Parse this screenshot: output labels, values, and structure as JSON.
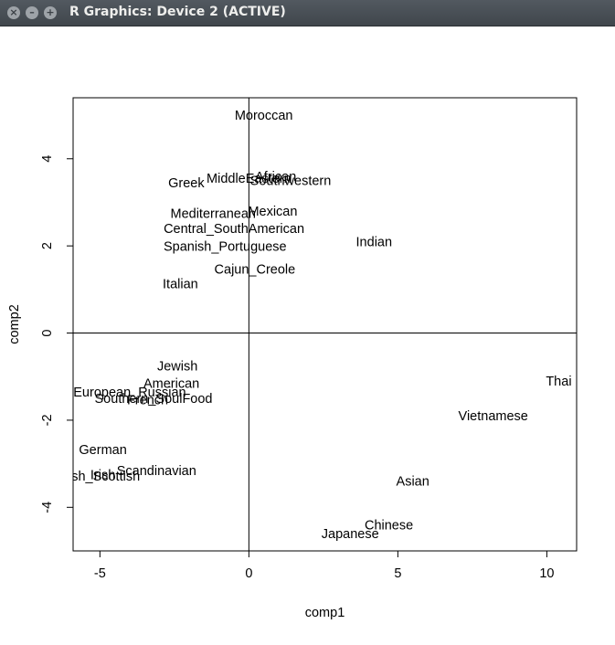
{
  "window": {
    "title": "R Graphics: Device 2 (ACTIVE)",
    "close_glyph": "×",
    "minimize_glyph": "–",
    "maximize_glyph": "+"
  },
  "chart_data": {
    "type": "scatter",
    "title": "",
    "xlabel": "comp1",
    "ylabel": "comp2",
    "xlim": [
      -5.9,
      11.0
    ],
    "ylim": [
      -5.0,
      5.4
    ],
    "xticks": [
      -5,
      0,
      5,
      10
    ],
    "yticks": [
      -4,
      -2,
      0,
      2,
      4
    ],
    "reference_lines": {
      "x": 0,
      "y": 0
    },
    "grid": false,
    "points": [
      {
        "label": "Moroccan",
        "x": 0.5,
        "y": 5.0
      },
      {
        "label": "African",
        "x": 0.9,
        "y": 3.6
      },
      {
        "label": "MiddleEastern",
        "x": 0.0,
        "y": 3.55
      },
      {
        "label": "Southwestern",
        "x": 1.4,
        "y": 3.5
      },
      {
        "label": "Greek",
        "x": -2.1,
        "y": 3.45
      },
      {
        "label": "Mexican",
        "x": 0.8,
        "y": 2.8
      },
      {
        "label": "Mediterranean",
        "x": -1.2,
        "y": 2.75
      },
      {
        "label": "Central_SouthAmerican",
        "x": -0.5,
        "y": 2.4
      },
      {
        "label": "Indian",
        "x": 4.2,
        "y": 2.1
      },
      {
        "label": "Spanish_Portuguese",
        "x": -0.8,
        "y": 1.99
      },
      {
        "label": "Cajun_Creole",
        "x": 0.2,
        "y": 1.47
      },
      {
        "label": "Italian",
        "x": -2.3,
        "y": 1.13
      },
      {
        "label": "Jewish",
        "x": -2.4,
        "y": -0.75
      },
      {
        "label": "American",
        "x": -2.6,
        "y": -1.15
      },
      {
        "label": "European_Russian",
        "x": -4.0,
        "y": -1.35
      },
      {
        "label": "Southern_SoulFood",
        "x": -3.2,
        "y": -1.5
      },
      {
        "label": "French",
        "x": -3.4,
        "y": -1.53
      },
      {
        "label": "Thai",
        "x": 10.4,
        "y": -1.1
      },
      {
        "label": "Vietnamese",
        "x": 8.2,
        "y": -1.9
      },
      {
        "label": "German",
        "x": -4.9,
        "y": -2.67
      },
      {
        "label": "Scandinavian",
        "x": -3.1,
        "y": -3.15
      },
      {
        "label": "Irish",
        "x": -4.9,
        "y": -3.25
      },
      {
        "label": "English_Scottish",
        "x": -5.3,
        "y": -3.28
      },
      {
        "label": "Asian",
        "x": 5.5,
        "y": -3.4
      },
      {
        "label": "Chinese",
        "x": 4.7,
        "y": -4.4
      },
      {
        "label": "Japanese",
        "x": 3.4,
        "y": -4.6
      }
    ]
  }
}
